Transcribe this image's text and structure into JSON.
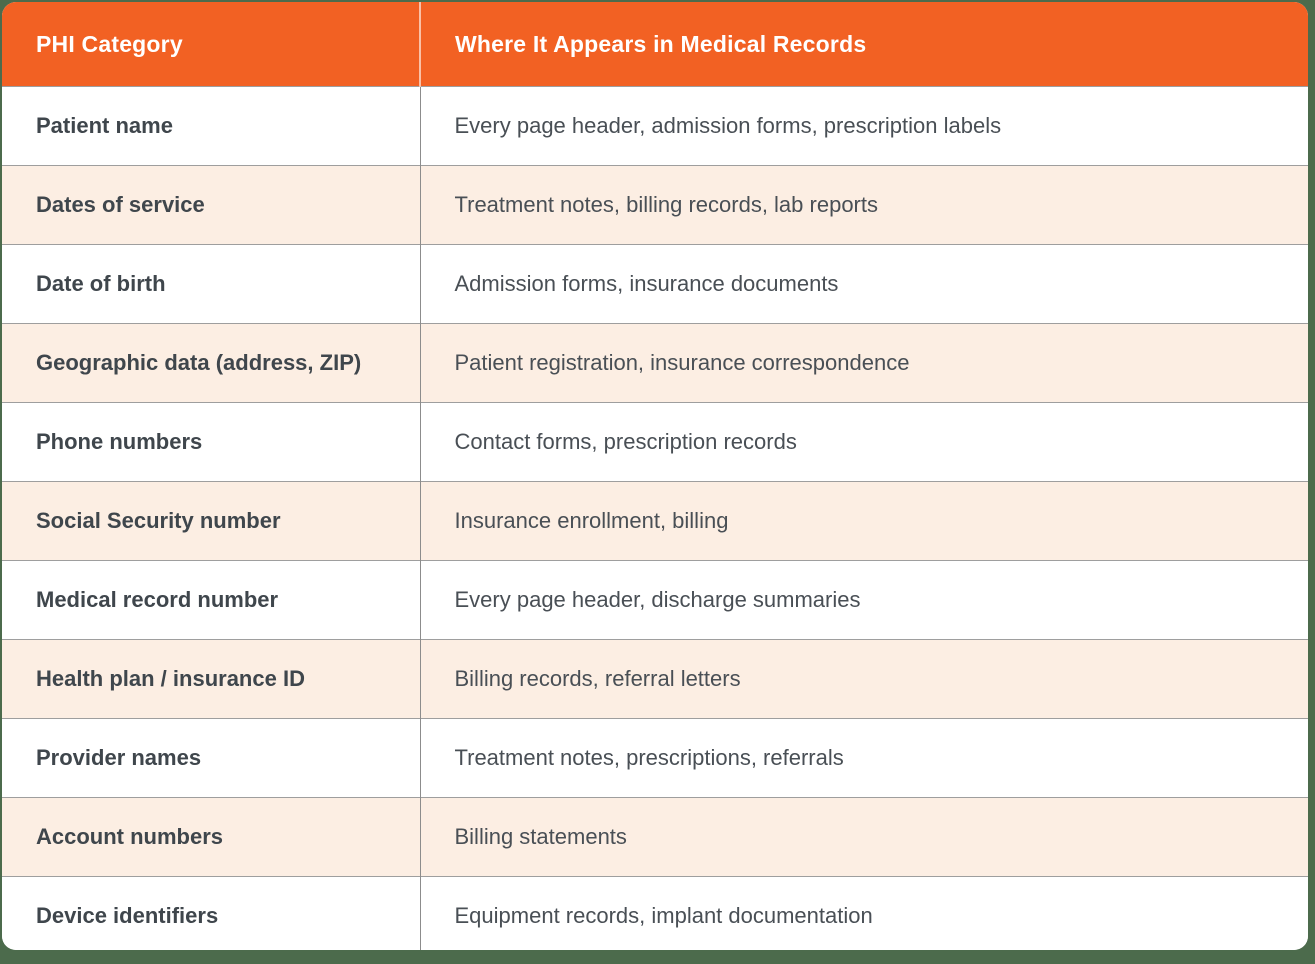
{
  "page": {
    "background_color": "#4C6B4C",
    "card_background": "#FFFFFF"
  },
  "table": {
    "header": {
      "background_color": "#F26123",
      "text_color": "#FFFFFF",
      "columns": [
        "PHI Category",
        "Where It Appears in Medical Records"
      ]
    },
    "stripe_color": "#FCEEE3",
    "divider_color_horizontal": "#9E9E9E",
    "divider_color_vertical": "#8C8C8C",
    "category_text_color": "#3F464C",
    "location_text_color": "#494F55",
    "rows": [
      {
        "category": "Patient name",
        "where": "Every page header, admission forms, prescription labels"
      },
      {
        "category": "Dates of service",
        "where": "Treatment notes, billing records, lab reports"
      },
      {
        "category": "Date of birth",
        "where": "Admission forms, insurance documents"
      },
      {
        "category": "Geographic data (address, ZIP)",
        "where": "Patient registration, insurance correspondence"
      },
      {
        "category": "Phone numbers",
        "where": "Contact forms, prescription records"
      },
      {
        "category": "Social Security number",
        "where": "Insurance enrollment, billing"
      },
      {
        "category": "Medical record number",
        "where": "Every page header, discharge summaries"
      },
      {
        "category": "Health plan / insurance ID",
        "where": "Billing records, referral letters"
      },
      {
        "category": "Provider names",
        "where": "Treatment notes, prescriptions, referrals"
      },
      {
        "category": "Account numbers",
        "where": "Billing statements"
      },
      {
        "category": "Device identifiers",
        "where": "Equipment records, implant documentation"
      }
    ]
  }
}
